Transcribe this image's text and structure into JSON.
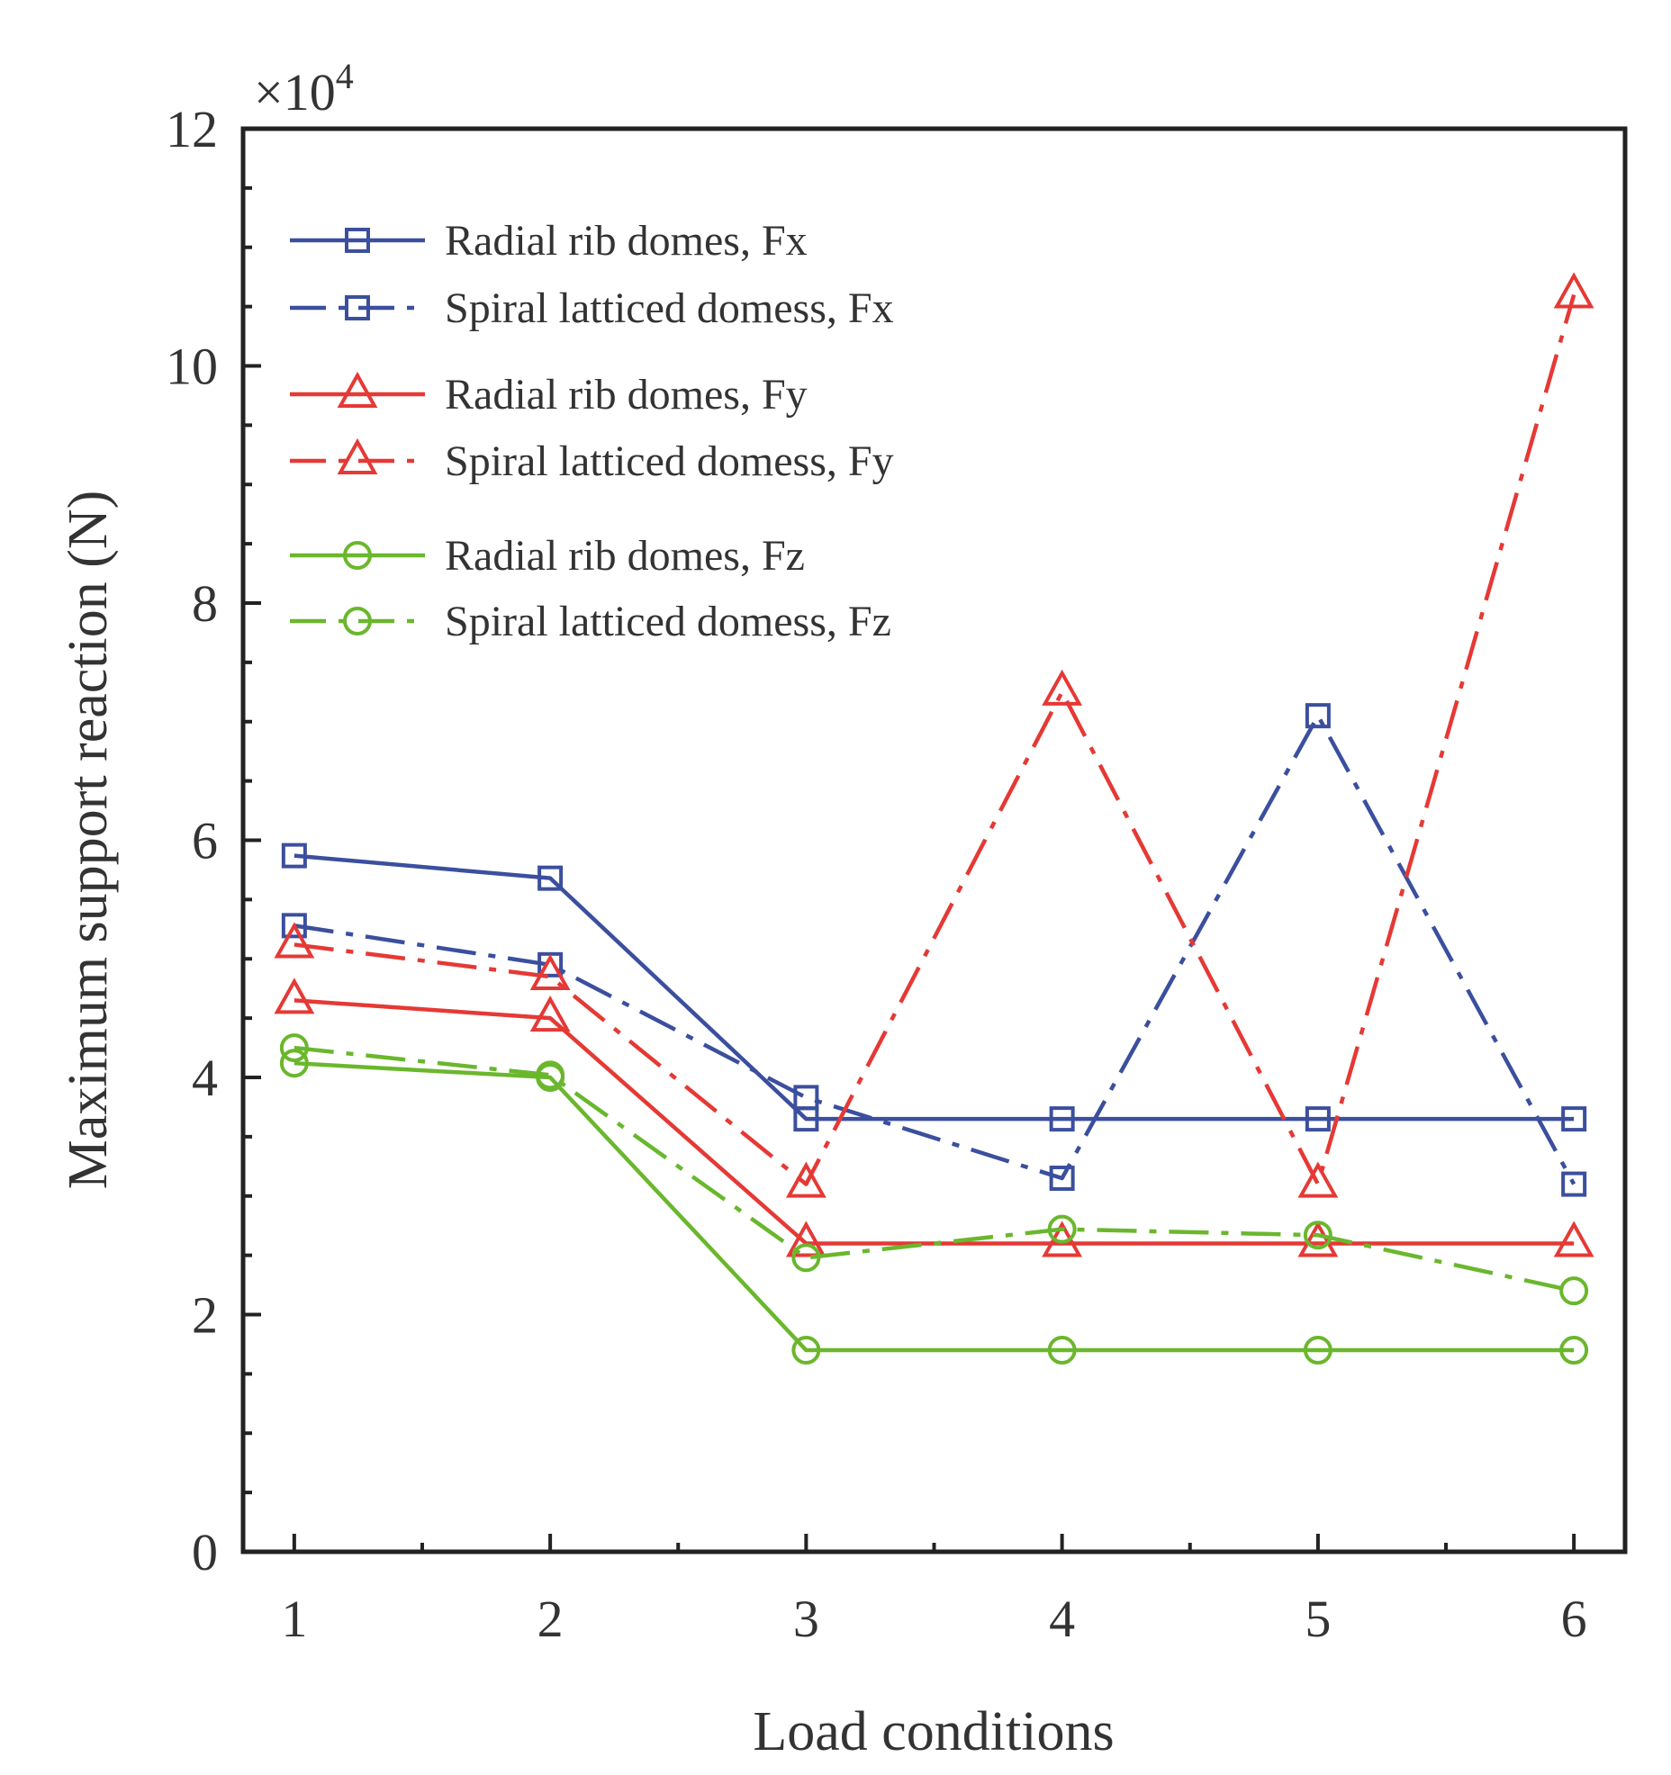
{
  "chart_data": {
    "type": "line",
    "xlabel": "Load conditions",
    "ylabel": "Maximum support reaction (N)",
    "y_multiplier": "×10",
    "y_multiplier_exp": "4",
    "x": [
      1,
      2,
      3,
      4,
      5,
      6
    ],
    "x_ticks": [
      "1",
      "2",
      "3",
      "4",
      "5",
      "6"
    ],
    "xlim": [
      0.8,
      6.2
    ],
    "ylim": [
      0,
      12
    ],
    "y_ticks": [
      "0",
      "2",
      "4",
      "6",
      "8",
      "10",
      "12"
    ],
    "grid": false,
    "legend_position": "top-left",
    "series": [
      {
        "name": "Radial rib domes, Fx",
        "values": [
          5.87,
          5.68,
          3.65,
          3.65,
          3.65,
          3.65
        ],
        "color": "#3b4f9e",
        "dash": "solid",
        "marker": "square"
      },
      {
        "name": "Spiral latticed domess, Fx",
        "values": [
          5.28,
          4.95,
          3.83,
          3.15,
          7.05,
          3.1
        ],
        "color": "#3b4f9e",
        "dash": "dashdot",
        "marker": "square"
      },
      {
        "name": "Radial rib domes, Fy",
        "values": [
          4.65,
          4.5,
          2.6,
          2.6,
          2.6,
          2.6
        ],
        "color": "#e53935",
        "dash": "solid",
        "marker": "triangle"
      },
      {
        "name": "Spiral latticed domess, Fy",
        "values": [
          5.12,
          4.85,
          3.1,
          7.25,
          3.1,
          10.6
        ],
        "color": "#e53935",
        "dash": "dashdot",
        "marker": "triangle"
      },
      {
        "name": "Radial rib domes, Fz",
        "values": [
          4.12,
          4.0,
          1.7,
          1.7,
          1.7,
          1.7
        ],
        "color": "#6ab72d",
        "dash": "solid",
        "marker": "circle"
      },
      {
        "name": "Spiral latticed domess, Fz",
        "values": [
          4.25,
          4.02,
          2.48,
          2.72,
          2.67,
          2.2
        ],
        "color": "#6ab72d",
        "dash": "dashdot",
        "marker": "circle"
      }
    ]
  }
}
